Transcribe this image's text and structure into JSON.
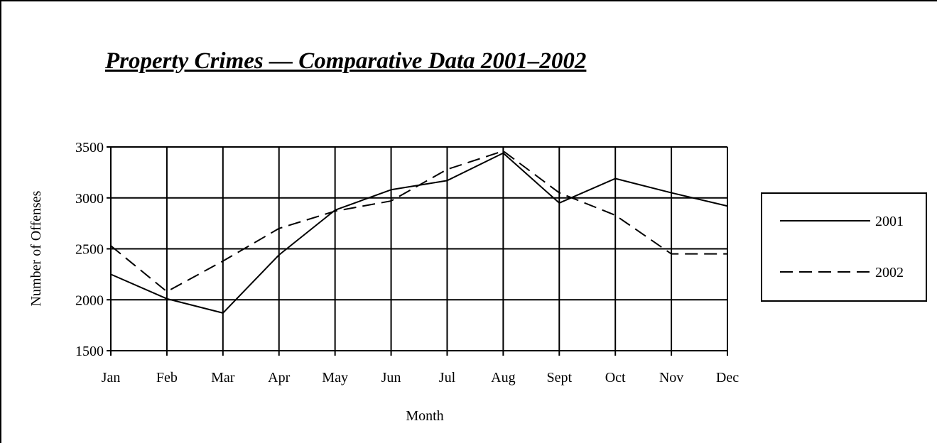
{
  "chart_data": {
    "type": "line",
    "title": "Property Crimes — Comparative Data 2001–2002",
    "xlabel": "Month",
    "ylabel": "Number of Offenses",
    "categories": [
      "Jan",
      "Feb",
      "Mar",
      "Apr",
      "May",
      "Jun",
      "Jul",
      "Aug",
      "Sept",
      "Oct",
      "Nov",
      "Dec"
    ],
    "ylim": [
      1500,
      3500
    ],
    "yticks": [
      1500,
      2000,
      2500,
      3000,
      3500
    ],
    "grid": true,
    "legend_position": "right",
    "series": [
      {
        "name": "2001",
        "style": "solid",
        "color": "#000000",
        "values": [
          2250,
          2010,
          1870,
          2440,
          2880,
          3080,
          3170,
          3440,
          2950,
          3190,
          3050,
          2920
        ]
      },
      {
        "name": "2002",
        "style": "dashed",
        "color": "#000000",
        "values": [
          2530,
          2080,
          2380,
          2700,
          2870,
          2970,
          3280,
          3460,
          3050,
          2830,
          2450,
          2450
        ]
      }
    ]
  }
}
